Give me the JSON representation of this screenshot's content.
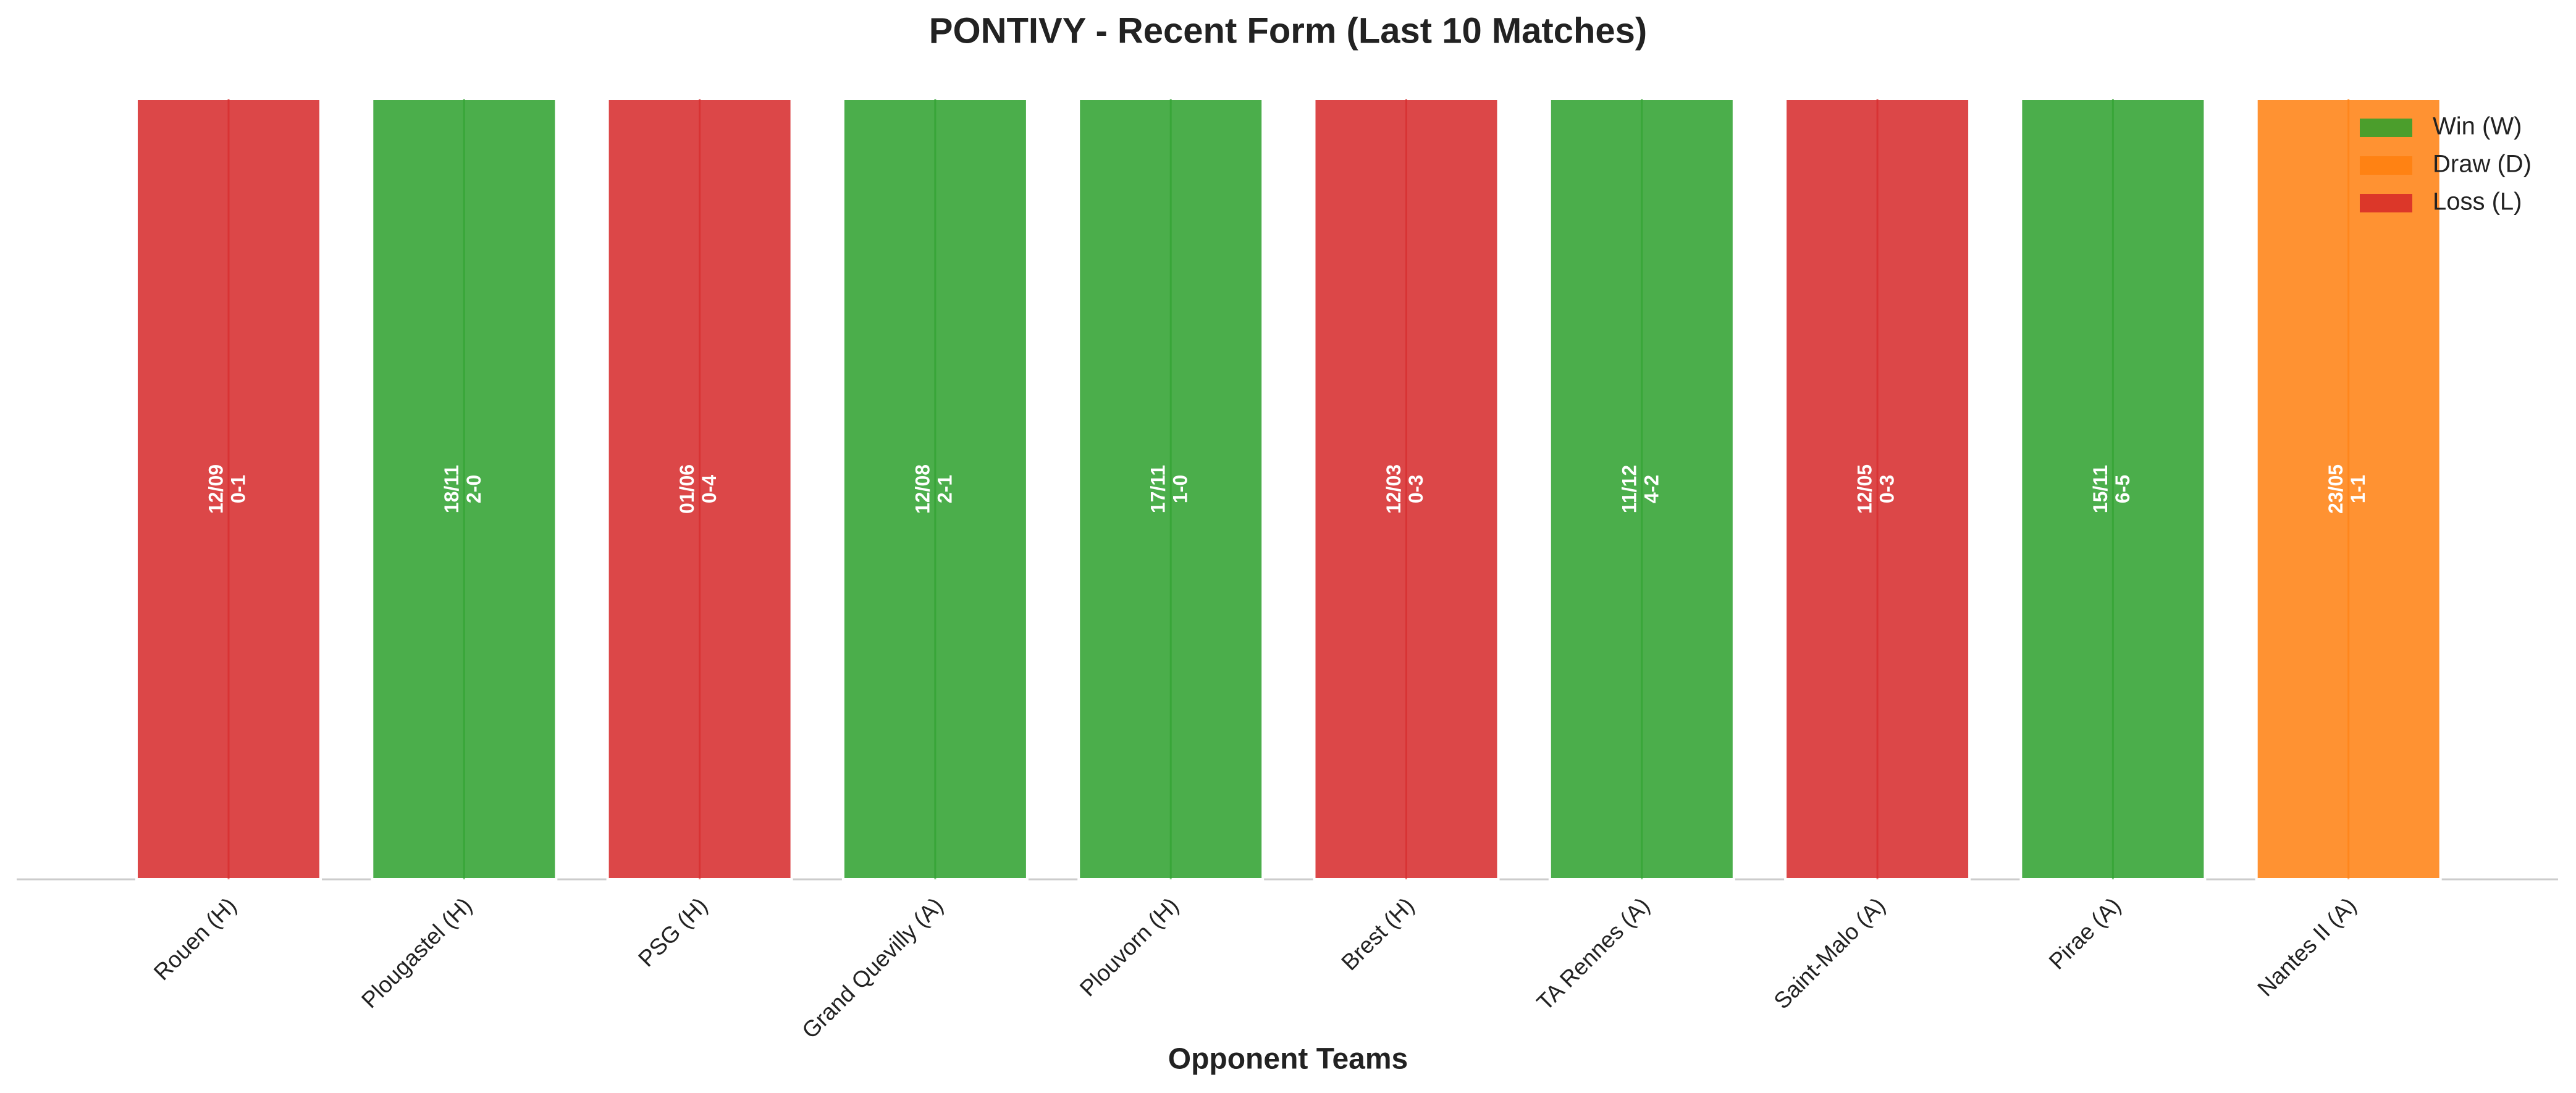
{
  "chart_data": {
    "type": "bar",
    "title": "PONTIVY - Recent Form (Last 10 Matches)",
    "x_label": "Opponent Teams",
    "categories": [
      "Rouen (H)",
      "Plougastel (H)",
      "PSG (H)",
      "Grand Quevilly (A)",
      "Plouvorn (H)",
      "Brest (H)",
      "TA Rennes (A)",
      "Saint-Malo (A)",
      "Pirae (A)",
      "Nantes II (A)"
    ],
    "values": [
      1,
      1,
      1,
      1,
      1,
      1,
      1,
      1,
      1,
      1
    ],
    "ylim": [
      0,
      1
    ],
    "dates": [
      "12/09",
      "18/11",
      "01/06",
      "12/08",
      "17/11",
      "12/03",
      "11/12",
      "12/05",
      "15/11",
      "23/05"
    ],
    "scores": [
      "0-1",
      "2-0",
      "0-4",
      "2-1",
      "1-0",
      "0-3",
      "4-2",
      "0-3",
      "6-5",
      "1-1"
    ],
    "results": [
      "Loss (L)",
      "Win (W)",
      "Loss (L)",
      "Win (W)",
      "Win (W)",
      "Loss (L)",
      "Win (W)",
      "Loss (L)",
      "Win (W)",
      "Draw (D)"
    ],
    "legend": [
      {
        "name": "Win (W)",
        "color": "#2ca02c"
      },
      {
        "name": "Draw (D)",
        "color": "#ff7f0e"
      },
      {
        "name": "Loss (L)",
        "color": "#d62728"
      }
    ],
    "legend_position": "upper right"
  }
}
